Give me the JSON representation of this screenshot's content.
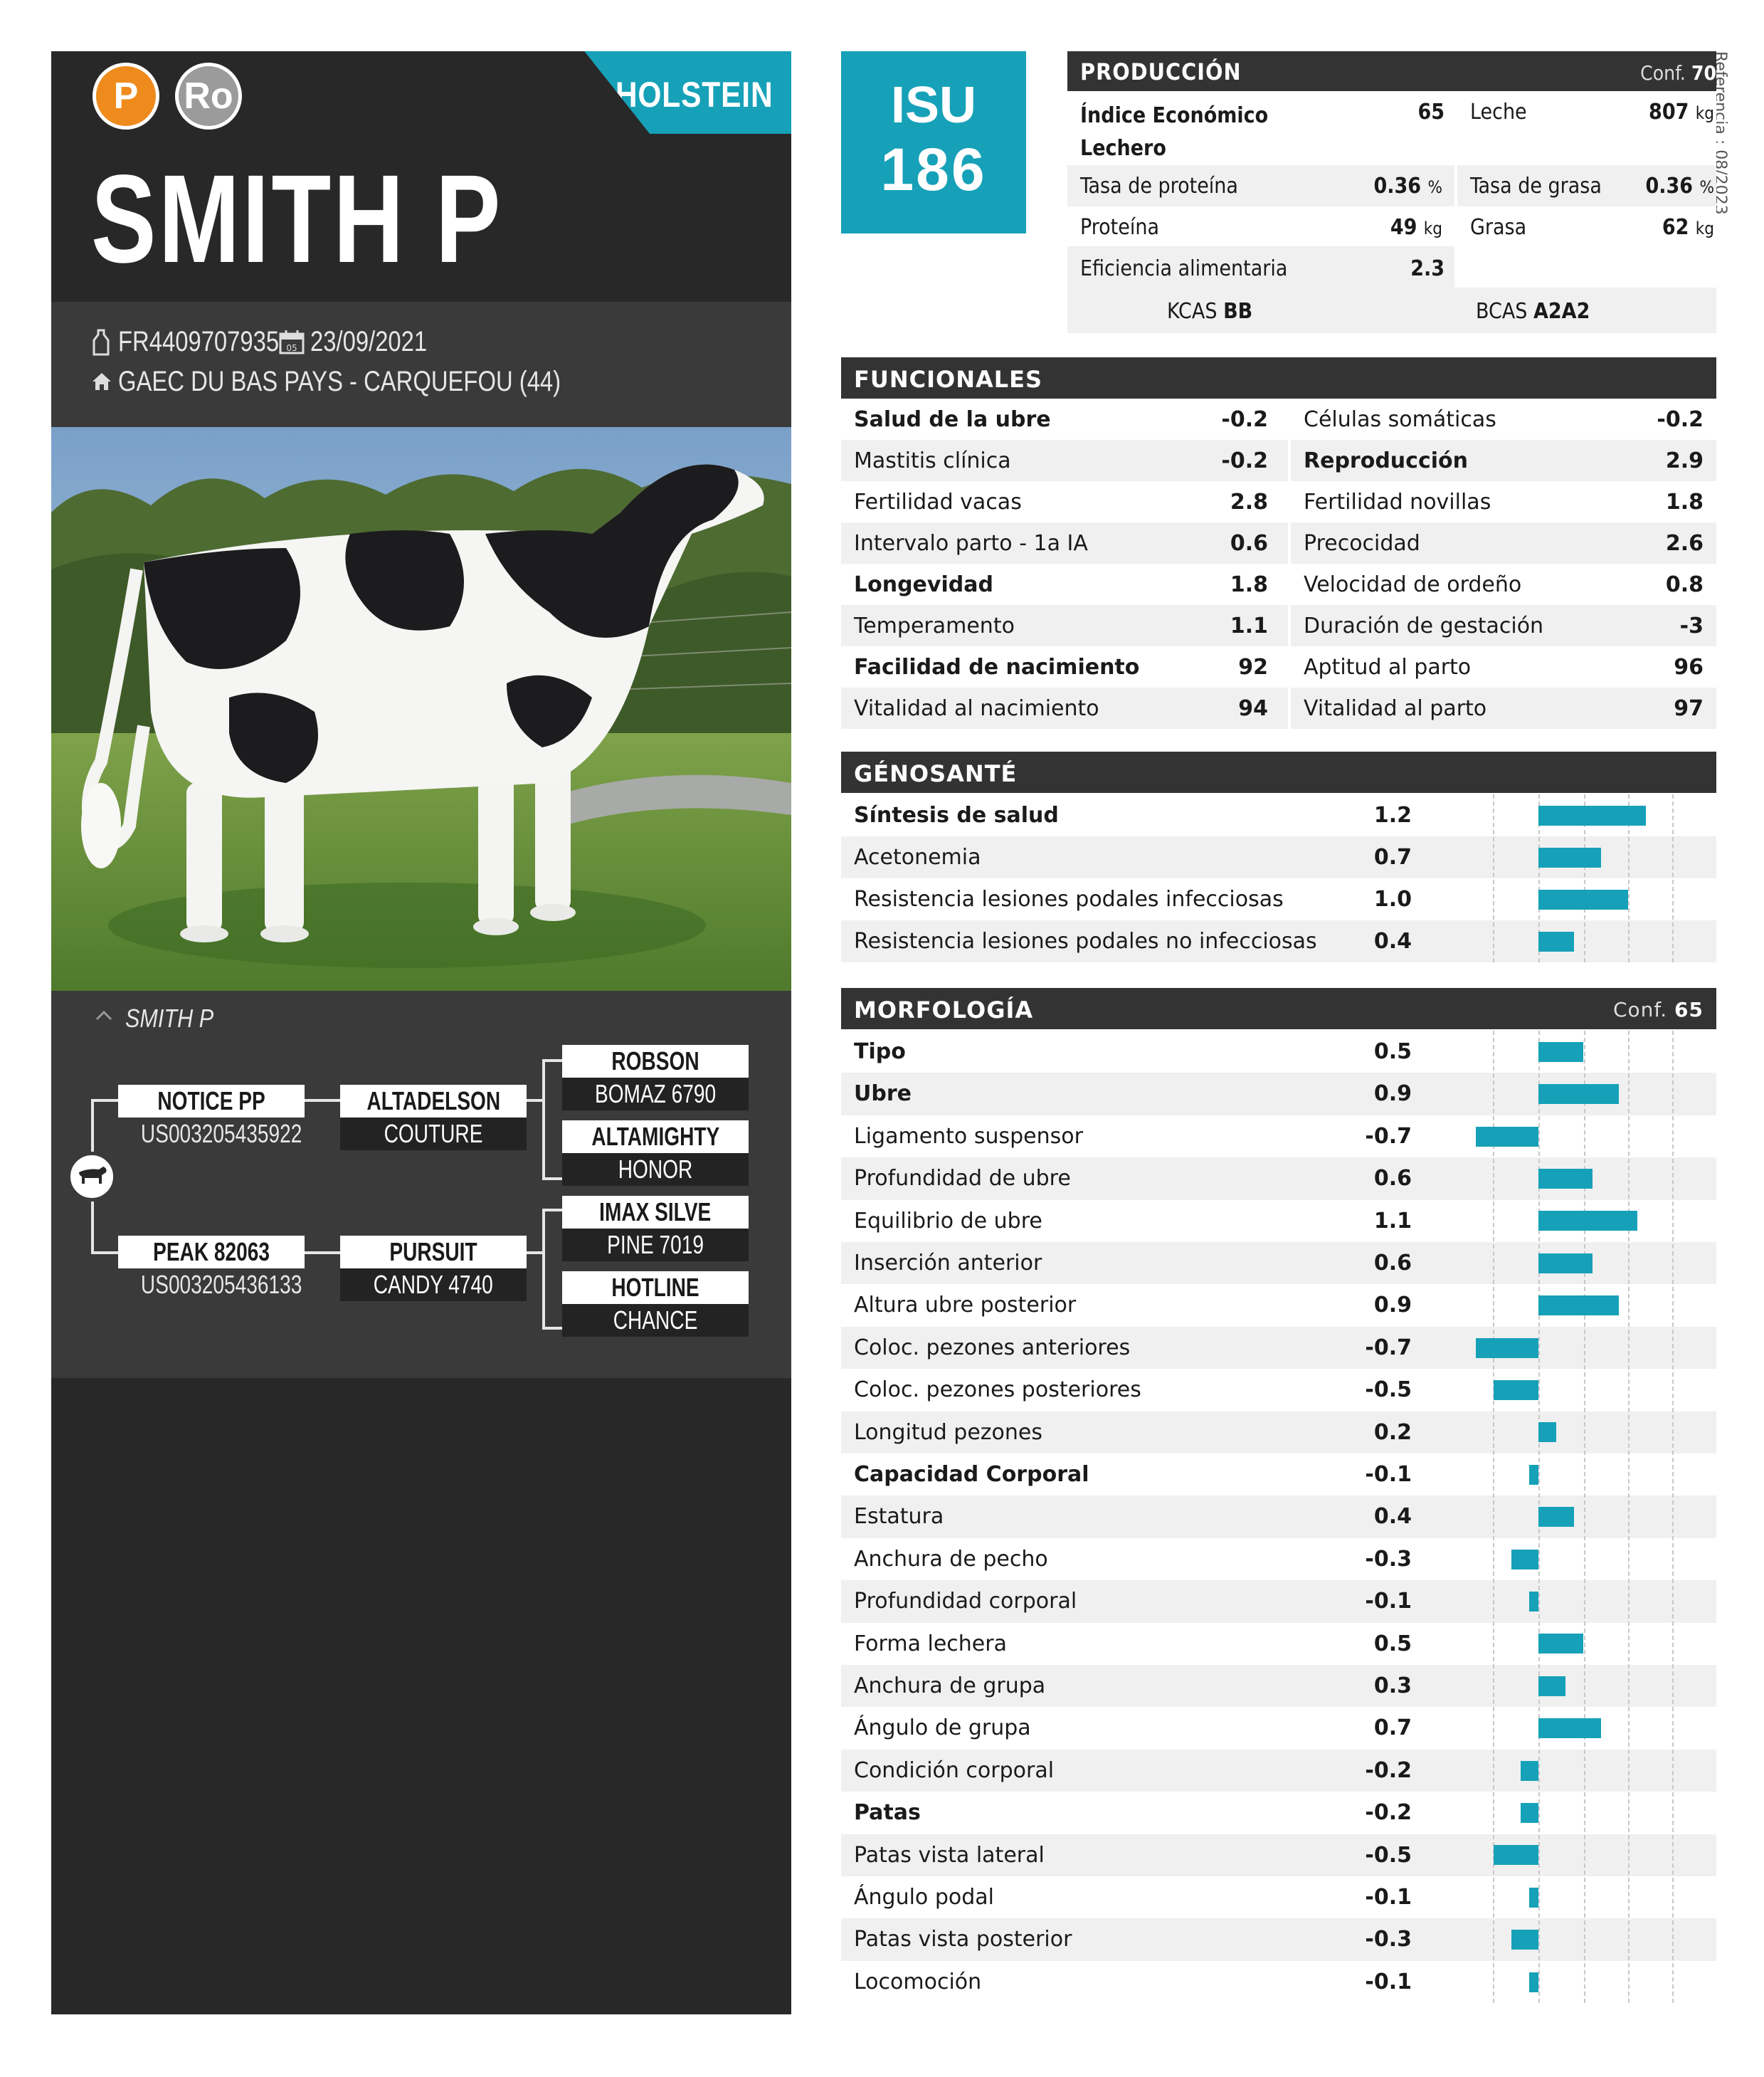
{
  "header": {
    "badge_p": "P",
    "badge_ro": "Ro",
    "breed": "HOLSTEIN",
    "name": "SMITH P",
    "id": "FR4409707935",
    "birth": "23/09/2021",
    "breeder": "GAEC DU BAS PAYS - CARQUEFOU (44)",
    "calendar_day": "05"
  },
  "isu": {
    "label": "ISU",
    "value": "186"
  },
  "reference": "Referencia : 08/2023",
  "produccion": {
    "title": "PRODUCCIÓN",
    "conf_label": "Conf.",
    "conf": "70",
    "ie_label_1": "Índice Económico",
    "ie_label_2": "Lechero",
    "ie": "65",
    "leche_label": "Leche",
    "leche": "807",
    "leche_u": "kg",
    "tp_label": "Tasa de proteína",
    "tp": "0.36",
    "tp_u": "%",
    "tg_label": "Tasa de grasa",
    "tg": "0.36",
    "tg_u": "%",
    "prot_label": "Proteína",
    "prot": "49",
    "prot_u": "kg",
    "grasa_label": "Grasa",
    "grasa": "62",
    "grasa_u": "kg",
    "ef_label": "Eficiencia alimentaria",
    "ef": "2.3",
    "kcas_label": "KCAS",
    "kcas": "BB",
    "bcas_label": "BCAS",
    "bcas": "A2A2"
  },
  "funcionales": {
    "title": "FUNCIONALES",
    "rows": [
      {
        "l1": "Salud de la ubre",
        "v1": "-0.2",
        "l2": "Células somáticas",
        "v2": "-0.2"
      },
      {
        "l1": "Mastitis clínica",
        "v1": "-0.2",
        "l2": "Reproducción",
        "v2": "2.9"
      },
      {
        "l1": "Fertilidad vacas",
        "v1": "2.8",
        "l2": "Fertilidad novillas",
        "v2": "1.8"
      },
      {
        "l1": "Intervalo parto - 1a IA",
        "v1": "0.6",
        "l2": "Precocidad",
        "v2": "2.6"
      },
      {
        "l1": "Longevidad",
        "v1": "1.8",
        "l2": "Velocidad de ordeño",
        "v2": "0.8"
      },
      {
        "l1": "Temperamento",
        "v1": "1.1",
        "l2": "Duración de gestación",
        "v2": "-3"
      },
      {
        "l1": "Facilidad de nacimiento",
        "v1": "92",
        "l2": "Aptitud al parto",
        "v2": "96"
      },
      {
        "l1": "Vitalidad al nacimiento",
        "v1": "94",
        "l2": "Vitalidad al parto",
        "v2": "97"
      }
    ]
  },
  "genosante": {
    "title": "GÉNOSANTÉ",
    "rows": [
      {
        "label": "Síntesis de salud",
        "value": "1.2",
        "bold": true
      },
      {
        "label": "Acetonemia",
        "value": "0.7"
      },
      {
        "label": "Resistencia lesiones podales infecciosas",
        "value": "1.0"
      },
      {
        "label": "Resistencia lesiones podales no infecciosas",
        "value": "0.4"
      }
    ]
  },
  "morfologia": {
    "title": "MORFOLOGÍA",
    "conf_label": "Conf.",
    "conf": "65",
    "rows": [
      {
        "label": "Tipo",
        "value": "0.5",
        "bold": true
      },
      {
        "label": "Ubre",
        "value": "0.9",
        "bold": true
      },
      {
        "label": "Ligamento suspensor",
        "value": "-0.7"
      },
      {
        "label": "Profundidad de ubre",
        "value": "0.6"
      },
      {
        "label": "Equilibrio de ubre",
        "value": "1.1"
      },
      {
        "label": "Inserción anterior",
        "value": "0.6"
      },
      {
        "label": "Altura ubre posterior",
        "value": "0.9"
      },
      {
        "label": "Coloc. pezones anteriores",
        "value": "-0.7"
      },
      {
        "label": "Coloc. pezones posteriores",
        "value": "-0.5"
      },
      {
        "label": "Longitud pezones",
        "value": "0.2"
      },
      {
        "label": "Capacidad Corporal",
        "value": "-0.1",
        "bold": true
      },
      {
        "label": "Estatura",
        "value": "0.4"
      },
      {
        "label": "Anchura de pecho",
        "value": "-0.3"
      },
      {
        "label": "Profundidad corporal",
        "value": "-0.1"
      },
      {
        "label": "Forma lechera",
        "value": "0.5"
      },
      {
        "label": "Anchura de grupa",
        "value": "0.3"
      },
      {
        "label": "Ángulo de grupa",
        "value": "0.7"
      },
      {
        "label": "Condición corporal",
        "value": "-0.2"
      },
      {
        "label": "Patas",
        "value": "-0.2",
        "bold": true
      },
      {
        "label": "Patas vista lateral",
        "value": "-0.5"
      },
      {
        "label": "Ángulo podal",
        "value": "-0.1"
      },
      {
        "label": "Patas vista posterior",
        "value": "-0.3"
      },
      {
        "label": "Locomoción",
        "value": "-0.1"
      }
    ]
  },
  "pedigree": {
    "title": "SMITH P",
    "sire": "NOTICE PP",
    "sire_id": "US003205435922",
    "dam": "PEAK 82063",
    "dam_id": "US003205436133",
    "ss": "ALTADELSON",
    "ss2": "COUTURE",
    "ds": "PURSUIT",
    "ds2": "CANDY 4740",
    "sss": "ROBSON",
    "sss2": "BOMAZ 6790",
    "ssd": "ALTAMIGHTY",
    "ssd2": "HONOR",
    "dss": "IMAX SILVE",
    "dss2": "PINE 7019",
    "dsd": "HOTLINE",
    "dsd2": "CHANCE"
  },
  "colors": {
    "accent": "#16a1b8",
    "orange": "#ef8b1d",
    "grey": "#9b9b9b",
    "dark": "#282829"
  }
}
